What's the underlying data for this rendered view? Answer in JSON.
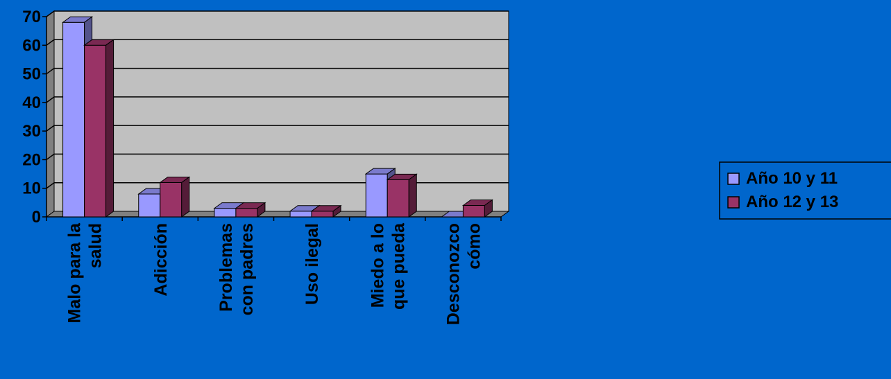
{
  "chart_data": {
    "type": "bar",
    "categories": [
      [
        "Malo para la",
        "salud"
      ],
      [
        "Adicción"
      ],
      [
        "Problemas",
        "con padres"
      ],
      [
        "Uso ilegal"
      ],
      [
        "Miedo a lo",
        "que pueda"
      ],
      [
        "Desconozco",
        "cómo"
      ]
    ],
    "series": [
      {
        "name": "Año 10 y 11",
        "color": "#9999FF",
        "values": [
          68,
          8,
          3,
          2,
          15,
          0
        ]
      },
      {
        "name": "Año 12 y 13",
        "color": "#993366",
        "values": [
          60,
          12,
          3,
          2,
          13,
          4
        ]
      }
    ],
    "ylim": [
      0,
      70
    ],
    "yticks": [
      "0",
      "10",
      "20",
      "30",
      "40",
      "50",
      "60",
      "70"
    ],
    "grid": true,
    "legend_position": "right",
    "colors": {
      "background": "#0066CC",
      "plot_area": "#C0C0C0",
      "floor": "#808080"
    }
  }
}
